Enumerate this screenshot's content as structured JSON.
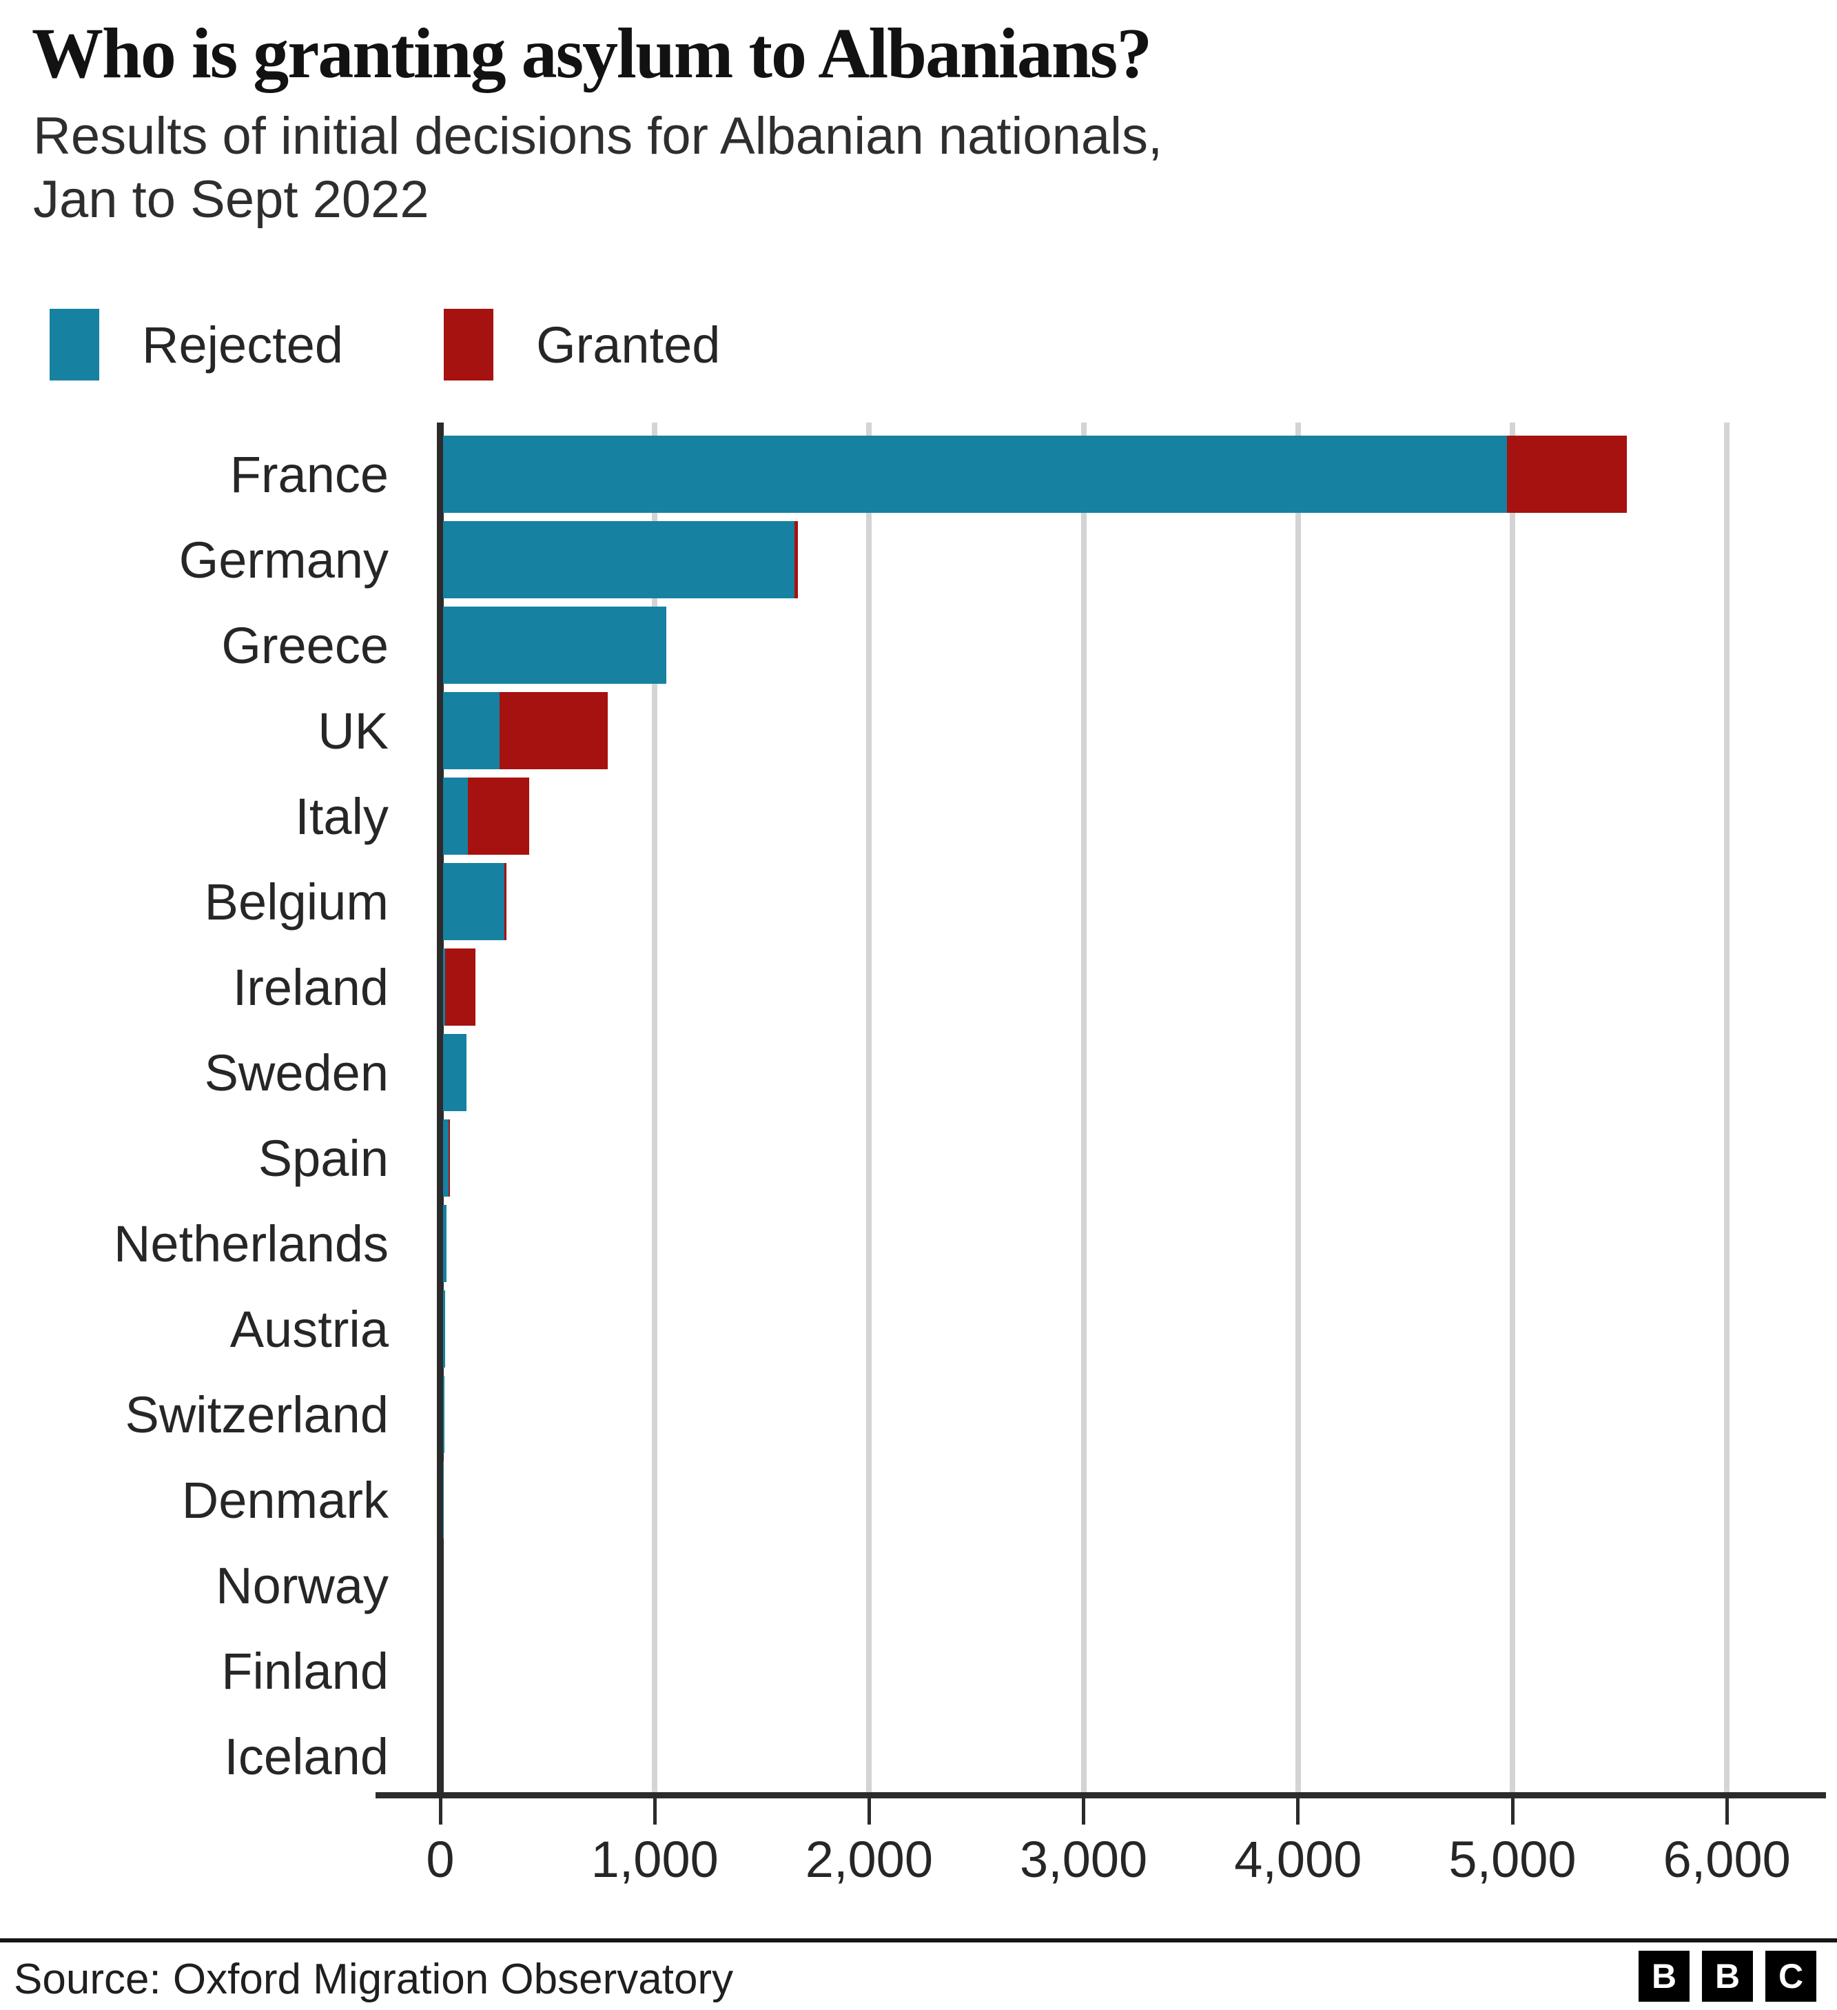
{
  "header": {
    "title": "Who is granting asylum to Albanians?",
    "subtitle_line1": "Results of initial decisions for Albanian nationals,",
    "subtitle_line2": "Jan to Sept 2022"
  },
  "legend": [
    {
      "label": "Rejected",
      "color": "#1681a1"
    },
    {
      "label": "Granted",
      "color": "#a6120f"
    }
  ],
  "chart_data": {
    "type": "bar",
    "orientation": "horizontal",
    "stacked": true,
    "title": "Who is granting asylum to Albanians?",
    "subtitle": "Results of initial decisions for Albanian nationals, Jan to Sept 2022",
    "categories": [
      "France",
      "Germany",
      "Greece",
      "UK",
      "Italy",
      "Belgium",
      "Ireland",
      "Sweden",
      "Spain",
      "Netherlands",
      "Austria",
      "Switzerland",
      "Denmark",
      "Norway",
      "Finland",
      "Iceland"
    ],
    "series": [
      {
        "name": "Rejected",
        "color": "#1681a1",
        "values": [
          4960,
          1640,
          1040,
          265,
          115,
          285,
          10,
          110,
          25,
          15,
          10,
          5,
          3,
          0,
          0,
          0
        ]
      },
      {
        "name": "Granted",
        "color": "#a6120f",
        "values": [
          560,
          15,
          0,
          505,
          285,
          10,
          140,
          0,
          5,
          0,
          0,
          0,
          0,
          0,
          0,
          0
        ]
      }
    ],
    "xlabel": "",
    "ylabel": "",
    "x_ticks": [
      0,
      1000,
      2000,
      3000,
      4000,
      5000,
      6000
    ],
    "x_tick_labels": [
      "0",
      "1,000",
      "2,000",
      "3,000",
      "4,000",
      "5,000",
      "6,000"
    ],
    "xlim": [
      0,
      6380
    ],
    "grid": "vertical",
    "legend_position": "top-left"
  },
  "footer": {
    "source": "Source: Oxford Migration Observatory",
    "logo_letters": [
      "B",
      "B",
      "C"
    ]
  }
}
